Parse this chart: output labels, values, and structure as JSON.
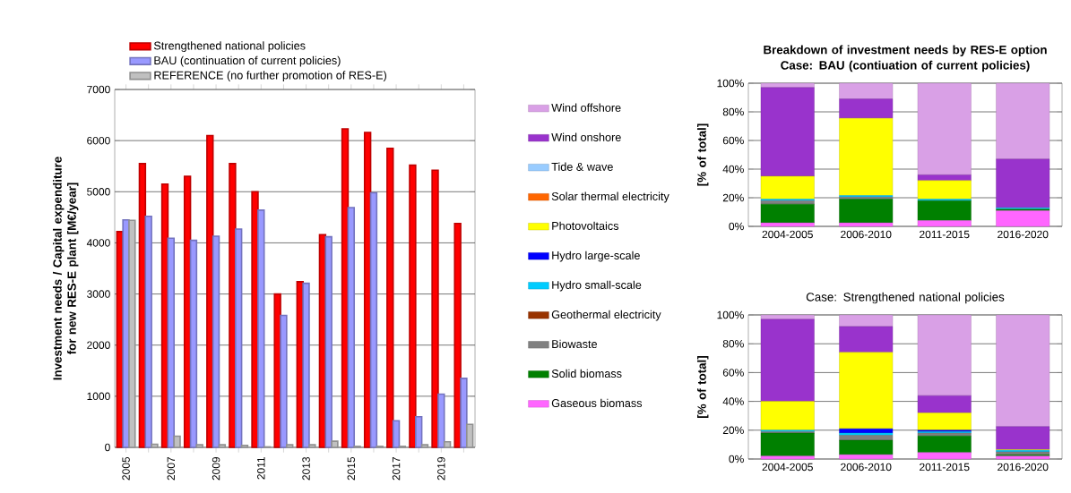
{
  "chart_data": [
    {
      "type": "bar",
      "ylabel": "Investment needs / Capital expenditure for new RES-E plant [M€/year]",
      "categories": [
        "2005",
        null,
        "2007",
        null,
        "2009",
        null,
        "2011",
        null,
        "2013",
        null,
        "2015",
        null,
        "2017",
        null,
        "2019",
        null
      ],
      "series": [
        {
          "name": "Strengthened national policies",
          "color": "#ff0000",
          "values": [
            4220,
            5550,
            5150,
            5300,
            6100,
            5550,
            5000,
            3000,
            3240,
            4160,
            6230,
            6160,
            5850,
            5520,
            5420,
            4380
          ]
        },
        {
          "name": "BAU (continuation of current policies)",
          "color": "#9999ff",
          "values": [
            4450,
            4520,
            4090,
            4050,
            4130,
            4270,
            4640,
            2580,
            3210,
            4120,
            4690,
            4980,
            520,
            600,
            1040,
            1350
          ]
        },
        {
          "name": "REFERENCE (no further promotion of RES-E)",
          "color": "#c0c0c0",
          "values": [
            4440,
            60,
            220,
            50,
            50,
            40,
            10,
            50,
            50,
            120,
            20,
            20,
            20,
            50,
            110,
            450
          ]
        }
      ],
      "ylim": [
        0,
        7000
      ],
      "yticks": [
        0,
        1000,
        2000,
        3000,
        4000,
        5000,
        6000,
        7000
      ],
      "grid": "y",
      "legend": "top left"
    },
    {
      "type": "bar",
      "stacked": true,
      "title": "Breakdown of investment needs by RES-E option",
      "subtitle": "Case: BAU (contiuation of current policies)",
      "ylabel": "[% of total]",
      "categories": [
        "2004-2005",
        "2006-2010",
        "2011-2015",
        "2016-2020"
      ],
      "series": [
        {
          "name": "Gaseous biomass",
          "color": "#ff66ff",
          "values": [
            2.5,
            2.5,
            4,
            11
          ]
        },
        {
          "name": "Solid biomass",
          "color": "#008000",
          "values": [
            13,
            16.5,
            14,
            1
          ]
        },
        {
          "name": "Biowaste",
          "color": "#808080",
          "values": [
            2.5,
            1.5,
            0,
            0
          ]
        },
        {
          "name": "Geothermal electricity",
          "color": "#993300",
          "values": [
            0,
            0,
            0,
            0
          ]
        },
        {
          "name": "Hydro small-scale",
          "color": "#00ccff",
          "values": [
            1,
            1,
            1,
            1
          ]
        },
        {
          "name": "Hydro large-scale",
          "color": "#0000ff",
          "values": [
            0,
            0,
            0,
            0
          ]
        },
        {
          "name": "Photovoltaics",
          "color": "#ffff00",
          "values": [
            16,
            54,
            13,
            0
          ]
        },
        {
          "name": "Solar thermal electricity",
          "color": "#ff6600",
          "values": [
            0,
            0,
            0,
            0
          ]
        },
        {
          "name": "Tide & wave",
          "color": "#99ccff",
          "values": [
            0,
            0,
            0,
            0
          ]
        },
        {
          "name": "Wind onshore",
          "color": "#9933cc",
          "values": [
            62,
            13.5,
            4,
            34
          ]
        },
        {
          "name": "Wind offshore",
          "color": "#d9a0e6",
          "values": [
            3,
            11,
            64,
            53
          ]
        }
      ],
      "ylim": [
        0,
        100
      ],
      "yticks": [
        {
          "value": 0,
          "label": "0%"
        },
        {
          "value": 20,
          "label": "20%"
        },
        {
          "value": 40,
          "label": "40%"
        },
        {
          "value": 60,
          "label": "60%"
        },
        {
          "value": 80,
          "label": "80%"
        },
        {
          "value": 100,
          "label": "100%"
        }
      ],
      "grid": "y",
      "legend": "left"
    },
    {
      "type": "bar",
      "stacked": true,
      "title": "Case: Strengthened national policies",
      "ylabel": "[% of total]",
      "categories": [
        "2004-2005",
        "2006-2010",
        "2011-2015",
        "2016-2020"
      ],
      "series": [
        {
          "color": "#ff66ff",
          "values": [
            2,
            3,
            4.5,
            2
          ]
        },
        {
          "color": "#008000",
          "values": [
            16,
            10,
            11.5,
            1
          ]
        },
        {
          "color": "#808080",
          "values": [
            1,
            3.5,
            2,
            2
          ]
        },
        {
          "color": "#993300",
          "values": [
            0,
            0,
            0,
            0
          ]
        },
        {
          "color": "#00ccff",
          "values": [
            1,
            1.5,
            1,
            1
          ]
        },
        {
          "color": "#0000ff",
          "values": [
            0,
            3,
            1,
            0
          ]
        },
        {
          "color": "#ffff00",
          "values": [
            20,
            53,
            12,
            0.5
          ]
        },
        {
          "color": "#ff6600",
          "values": [
            0,
            0,
            0,
            0
          ]
        },
        {
          "color": "#99ccff",
          "values": [
            0,
            0,
            0,
            0
          ]
        },
        {
          "color": "#9933cc",
          "values": [
            57,
            18,
            12,
            16
          ]
        },
        {
          "color": "#d9a0e6",
          "values": [
            3,
            8,
            56,
            77.5
          ]
        }
      ],
      "ylim": [
        0,
        100
      ],
      "yticks": [
        {
          "value": 0,
          "label": "0%"
        },
        {
          "value": 20,
          "label": "20%"
        },
        {
          "value": 40,
          "label": "40%"
        },
        {
          "value": 60,
          "label": "60%"
        },
        {
          "value": 80,
          "label": "80%"
        },
        {
          "value": 100,
          "label": "100%"
        }
      ],
      "grid": "y"
    }
  ]
}
